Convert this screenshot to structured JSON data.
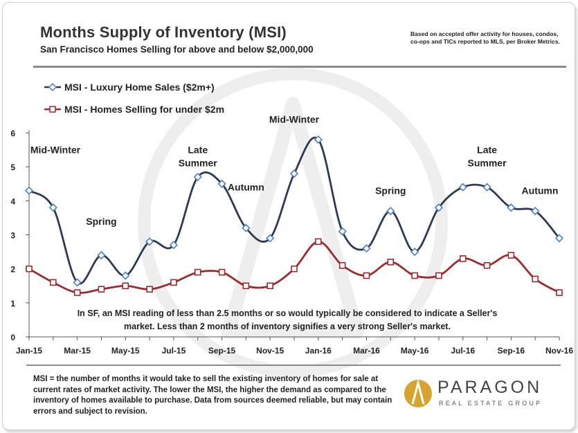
{
  "header": {
    "title": "Months Supply of Inventory (MSI)",
    "subtitle": "San Francisco Homes Selling for above and below $2,000,000",
    "source_note": "Based on accepted offer activity for houses, condos, co-ops and TICs reported to MLS, per Broker Metrics."
  },
  "chart_data": {
    "type": "line",
    "x": [
      "Jan-15",
      "Feb-15",
      "Mar-15",
      "Apr-15",
      "May-15",
      "Jun-15",
      "Jul-15",
      "Aug-15",
      "Sep-15",
      "Oct-15",
      "Nov-15",
      "Dec-15",
      "Jan-16",
      "Feb-16",
      "Mar-16",
      "Apr-16",
      "May-16",
      "Jun-16",
      "Jul-16",
      "Aug-16",
      "Sep-16",
      "Oct-16",
      "Nov-16"
    ],
    "x_tick_labels": [
      "Jan-15",
      "Mar-15",
      "May-15",
      "Jul-15",
      "Sep-15",
      "Nov-15",
      "Jan-16",
      "Mar-16",
      "May-16",
      "Jul-16",
      "Sep-16",
      "Nov-16"
    ],
    "ylim": [
      0,
      6
    ],
    "y_ticks": [
      0,
      1,
      2,
      3,
      4,
      5,
      6
    ],
    "series": [
      {
        "name": "MSI - Luxury Home Sales ($2m+)",
        "color": "#2d3a52",
        "marker_fill": "#ffffff",
        "marker_edge": "#4f7fc0",
        "marker": "diamond",
        "values": [
          4.3,
          3.8,
          1.6,
          2.4,
          1.8,
          2.8,
          2.7,
          4.7,
          4.5,
          3.2,
          2.9,
          4.8,
          5.8,
          3.1,
          2.6,
          3.7,
          2.5,
          3.8,
          4.4,
          4.4,
          3.8,
          3.7,
          2.9
        ]
      },
      {
        "name": "MSI - Homes Selling for under $2m",
        "color": "#9b2a2f",
        "marker_fill": "#ffffff",
        "marker_edge": "#9b2a2f",
        "marker": "square",
        "values": [
          2.0,
          1.6,
          1.3,
          1.4,
          1.5,
          1.4,
          1.6,
          1.9,
          1.9,
          1.5,
          1.5,
          2.0,
          2.8,
          2.1,
          1.8,
          2.2,
          1.8,
          1.8,
          2.3,
          2.1,
          2.4,
          1.7,
          1.3
        ]
      }
    ],
    "annotations": [
      {
        "lines": [
          "Mid-Winter"
        ],
        "x": "Jan-15",
        "y": 5.4
      },
      {
        "lines": [
          "Spring"
        ],
        "x": "Apr-15",
        "y": 3.3
      },
      {
        "lines": [
          "Late",
          "Summer"
        ],
        "x": "Aug-15",
        "y": 5.4
      },
      {
        "lines": [
          "Autumn"
        ],
        "x": "Oct-15",
        "y": 4.3
      },
      {
        "lines": [
          "Mid-Winter"
        ],
        "x": "Dec-15",
        "y": 6.3
      },
      {
        "lines": [
          "Spring"
        ],
        "x": "Apr-16",
        "y": 4.2
      },
      {
        "lines": [
          "Late",
          "Summer"
        ],
        "x": "Aug-16",
        "y": 5.4
      },
      {
        "lines": [
          "Autumn"
        ],
        "x": "Nov-16",
        "y": 4.2
      }
    ],
    "note": "In SF, an MSI reading of less than 2.5 months or so would typically be considered to indicate a Seller's market. Less than 2 months of inventory signifies a very strong Seller's market.",
    "legend_position": "top-left",
    "grid": false
  },
  "footer": {
    "definition": "MSI = the number of months it would take to sell the existing inventory of homes for sale at current rates of market activity. The lower the MSI, the higher the demand as compared to the inventory of homes available to purchase. Data from sources deemed reliable, but may contain errors and subject to revision.",
    "logo_name": "PARAGON",
    "logo_tagline": "REAL ESTATE GROUP",
    "logo_color": "#d8a431"
  }
}
